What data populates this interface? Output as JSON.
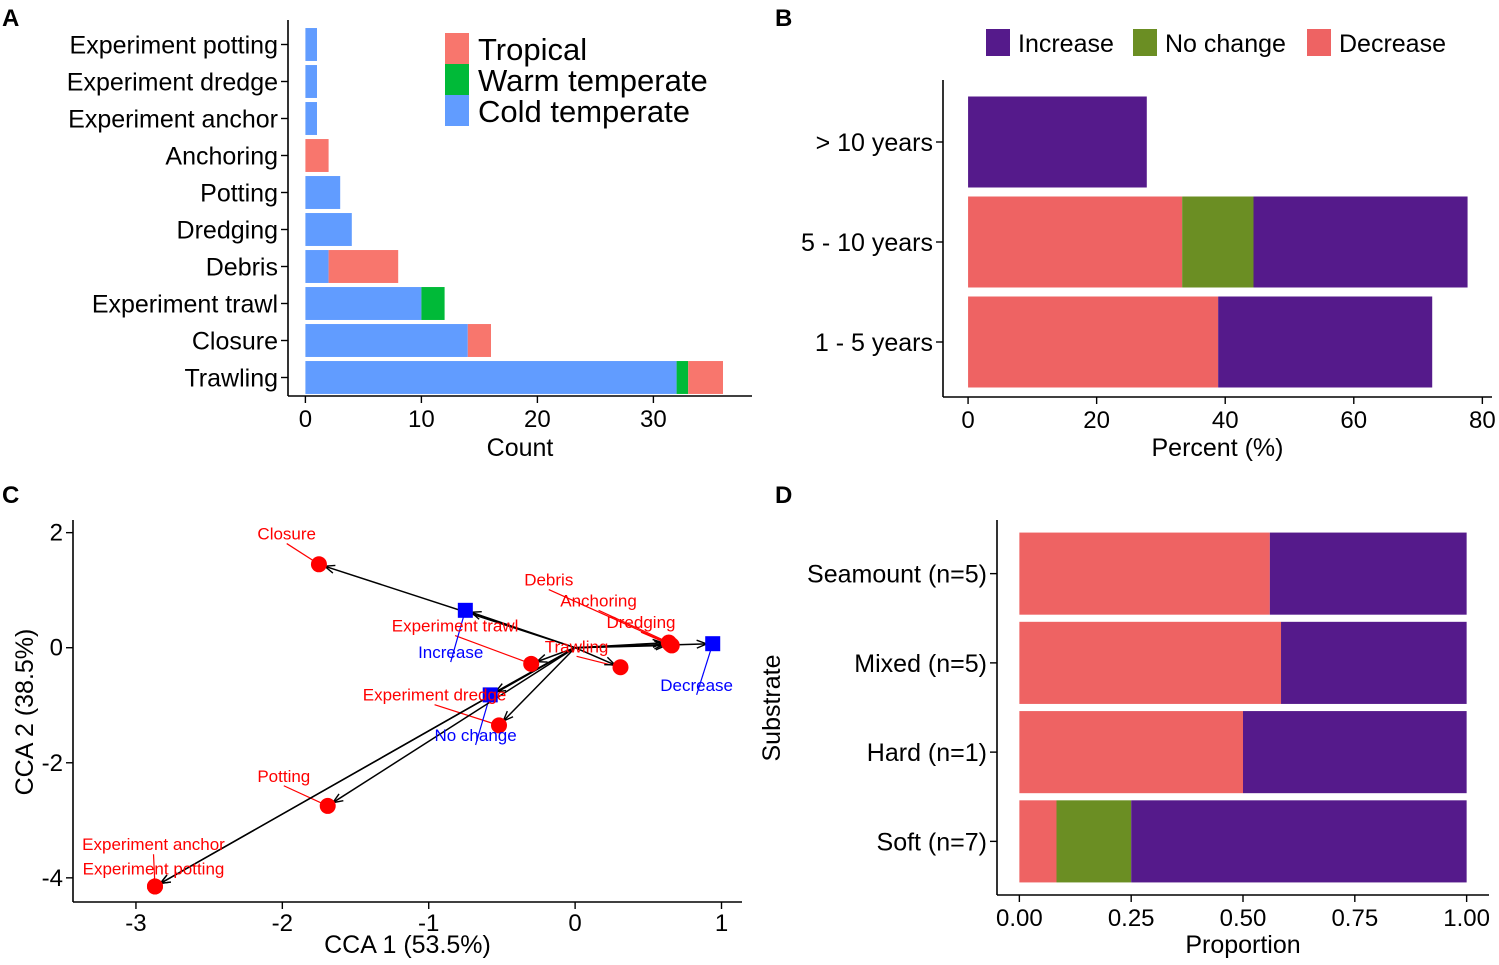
{
  "panels": {
    "A": "A",
    "B": "B",
    "C": "C",
    "D": "D"
  },
  "colors": {
    "tropical": "#F8766D",
    "warm_temperate": "#00BA38",
    "cold_temperate": "#619CFF",
    "increase": "#551A8B",
    "no_change": "#6B8E23",
    "decrease": "#EE6363",
    "site": "#FF0000",
    "response": "#0000FF"
  },
  "chart_data": [
    {
      "id": "A",
      "type": "bar",
      "orientation": "horizontal",
      "stacked": true,
      "categories": [
        "Experiment potting",
        "Experiment dredge",
        "Experiment anchor",
        "Anchoring",
        "Potting",
        "Dredging",
        "Debris",
        "Experiment trawl",
        "Closure",
        "Trawling"
      ],
      "series": [
        {
          "name": "Cold temperate",
          "color_key": "cold_temperate",
          "values": [
            1,
            1,
            1,
            0,
            3,
            4,
            2,
            10,
            14,
            32
          ]
        },
        {
          "name": "Warm temperate",
          "color_key": "warm_temperate",
          "values": [
            0,
            0,
            0,
            0,
            0,
            0,
            0,
            2,
            0,
            1
          ]
        },
        {
          "name": "Tropical",
          "color_key": "tropical",
          "values": [
            0,
            0,
            0,
            2,
            0,
            0,
            6,
            0,
            2,
            3
          ]
        }
      ],
      "legend": [
        "Tropical",
        "Warm temperate",
        "Cold temperate"
      ],
      "legend_position": "top-right",
      "xlabel": "Count",
      "ylabel": "",
      "xlim": [
        -1.5,
        38.5
      ],
      "xticks": [
        0,
        10,
        20,
        30
      ]
    },
    {
      "id": "B",
      "type": "bar",
      "orientation": "horizontal",
      "stacked": true,
      "categories": [
        "> 10 years",
        "5 - 10 years",
        "1 - 5 years"
      ],
      "series": [
        {
          "name": "Decrease",
          "color_key": "decrease",
          "values": [
            0,
            33.3,
            38.9
          ]
        },
        {
          "name": "No change",
          "color_key": "no_change",
          "values": [
            0,
            11.1,
            0
          ]
        },
        {
          "name": "Increase",
          "color_key": "increase",
          "values": [
            27.8,
            33.3,
            33.3
          ]
        }
      ],
      "legend": [
        "Increase",
        "No change",
        "Decrease"
      ],
      "legend_position": "top",
      "xlabel": "Percent (%)",
      "ylabel": "",
      "xlim": [
        -3.9,
        81.5
      ],
      "xticks": [
        0,
        20,
        40,
        60,
        80
      ]
    },
    {
      "id": "C",
      "type": "scatter",
      "title": "",
      "xlabel": "CCA 1 (53.5%)",
      "ylabel": "CCA 2 (38.5%)",
      "xlim": [
        -3.43,
        1.14
      ],
      "ylim": [
        -4.42,
        2.22
      ],
      "xticks": [
        -3,
        -2,
        -1,
        0,
        1
      ],
      "yticks": [
        2,
        0,
        -2,
        -4
      ],
      "arrow_origin": [
        0,
        0
      ],
      "sites": [
        {
          "label": "Closure",
          "x": -1.75,
          "y": 1.45,
          "lx": -1.97,
          "ly": 1.88
        },
        {
          "label": "Debris",
          "x": 0.65,
          "y": 0.06,
          "lx": -0.18,
          "ly": 1.08
        },
        {
          "label": "Anchoring",
          "x": 0.64,
          "y": 0.09,
          "lx": 0.16,
          "ly": 0.72
        },
        {
          "label": "Dredging",
          "x": 0.66,
          "y": 0.04,
          "lx": 0.45,
          "ly": 0.34
        },
        {
          "label": "Experiment trawl",
          "x": -0.3,
          "y": -0.28,
          "lx": -0.82,
          "ly": 0.28
        },
        {
          "label": "Trawling",
          "x": 0.31,
          "y": -0.34,
          "lx": 0.01,
          "ly": -0.08
        },
        {
          "label": "Experiment dredge",
          "x": -0.52,
          "y": -1.35,
          "lx": -0.96,
          "ly": -0.92
        },
        {
          "label": "Potting",
          "x": -1.69,
          "y": -2.75,
          "lx": -1.99,
          "ly": -2.33
        },
        {
          "label": "Experiment anchor",
          "x": -2.87,
          "y": -4.15,
          "lx": -2.88,
          "ly": -3.52
        },
        {
          "label": "Experiment potting",
          "x": -2.87,
          "y": -4.15,
          "lx": -2.88,
          "ly": -3.94
        }
      ],
      "responses": [
        {
          "label": "Increase",
          "x": -0.75,
          "y": 0.65,
          "lx": -0.85,
          "ly": -0.18
        },
        {
          "label": "Decrease",
          "x": 0.94,
          "y": 0.07,
          "lx": 0.83,
          "ly": -0.75
        },
        {
          "label": "No change",
          "x": -0.58,
          "y": -0.82,
          "lx": -0.68,
          "ly": -1.62
        }
      ]
    },
    {
      "id": "D",
      "type": "bar",
      "orientation": "horizontal",
      "stacked": true,
      "categories": [
        "Seamount (n=5)",
        "Mixed (n=5)",
        "Hard (n=1)",
        "Soft (n=7)"
      ],
      "series": [
        {
          "name": "Decrease",
          "color_key": "decrease",
          "values": [
            0.56,
            0.585,
            0.5,
            0.083
          ]
        },
        {
          "name": "No change",
          "color_key": "no_change",
          "values": [
            0,
            0,
            0,
            0.167
          ]
        },
        {
          "name": "Increase",
          "color_key": "increase",
          "values": [
            0.44,
            0.415,
            0.5,
            0.75
          ]
        }
      ],
      "xlabel": "Proportion",
      "ylabel": "Substrate",
      "xlim": [
        -0.05,
        1.05
      ],
      "xticks": [
        "0.00",
        "0.25",
        "0.50",
        "0.75",
        "1.00"
      ]
    }
  ]
}
